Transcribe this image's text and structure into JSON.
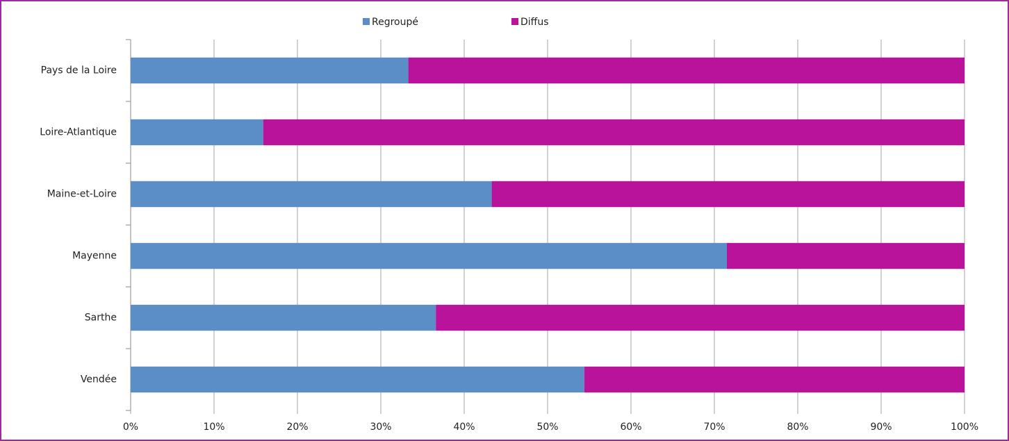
{
  "chart_data": {
    "type": "stacked_bar_horizontal",
    "categories": [
      "Pays de la Loire",
      "Loire-Atlantique",
      "Maine-et-Loire",
      "Mayenne",
      "Sarthe",
      "Vendée"
    ],
    "series": [
      {
        "name": "Regroupé",
        "color": "#5b8ec6",
        "values": [
          33.3,
          15.9,
          43.3,
          71.5,
          36.6,
          54.4
        ]
      },
      {
        "name": "Diffus",
        "color": "#b9139b",
        "values": [
          66.7,
          84.1,
          56.7,
          28.5,
          63.4,
          45.6
        ]
      }
    ],
    "xlim": [
      0,
      100
    ],
    "xticks": [
      {
        "value": 0,
        "label": "0%"
      },
      {
        "value": 10,
        "label": "10%"
      },
      {
        "value": 20,
        "label": "20%"
      },
      {
        "value": 30,
        "label": "30%"
      },
      {
        "value": 40,
        "label": "40%"
      },
      {
        "value": 50,
        "label": "50%"
      },
      {
        "value": 60,
        "label": "60%"
      },
      {
        "value": 70,
        "label": "70%"
      },
      {
        "value": 80,
        "label": "80%"
      },
      {
        "value": 90,
        "label": "90%"
      },
      {
        "value": 100,
        "label": "100%"
      }
    ],
    "grid": true,
    "legend": "top"
  }
}
